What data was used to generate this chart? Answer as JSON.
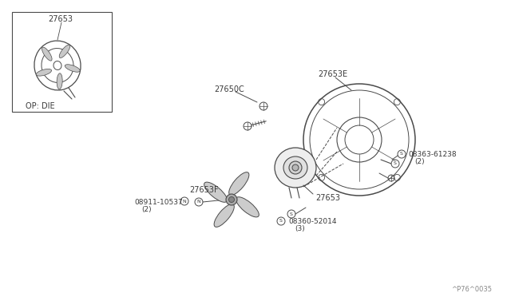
{
  "bg_color": "#ffffff",
  "line_color": "#4a4a4a",
  "text_color": "#3a3a3a",
  "fig_width": 6.4,
  "fig_height": 3.72,
  "dpi": 100,
  "watermark": "^P76^0035",
  "inset_label": "27653",
  "inset_sublabel": "OP: DIE",
  "label_27650C": "27650C",
  "label_27653E": "27653E",
  "label_08363": "08363-61238",
  "label_08363b": "(2)",
  "label_27653F": "27653F",
  "label_08911": "08911-10537",
  "label_08911b": "(2)",
  "label_27653": "27653",
  "label_08360": "08360-52014",
  "label_08360b": "(3)"
}
